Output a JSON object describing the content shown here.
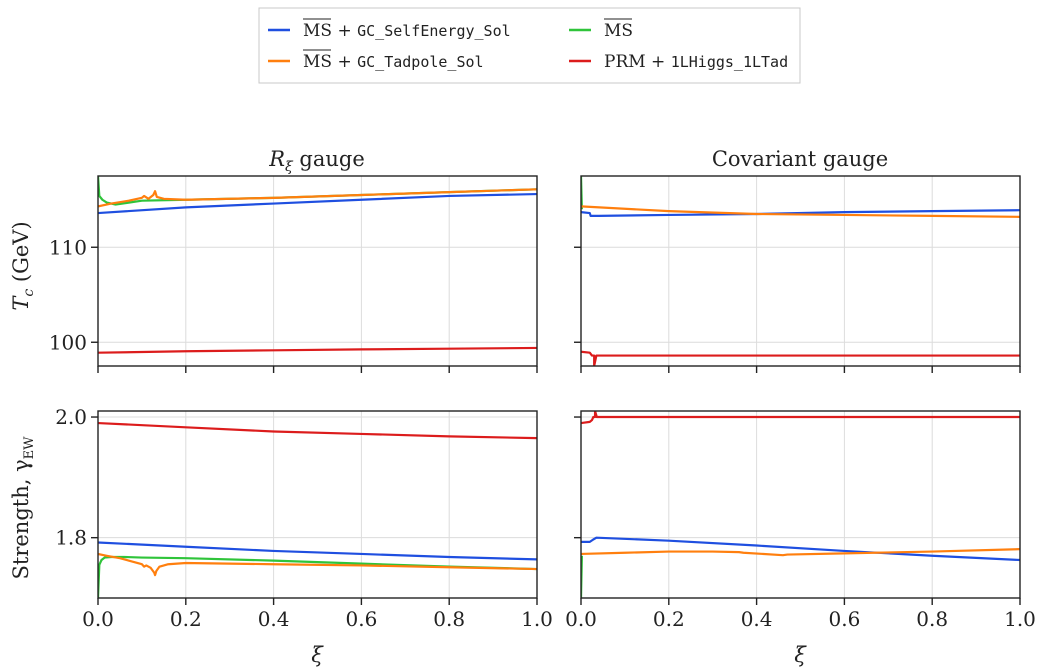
{
  "legend": {
    "placement": "top-center",
    "entries": [
      {
        "id": "ms_se",
        "prefix": "MS",
        "plus": " + ",
        "code": "GC_SelfEnergy_Sol",
        "color": "#1f4fe0"
      },
      {
        "id": "ms",
        "prefix": "MS",
        "plus": "",
        "code": "",
        "color": "#2fc43a"
      },
      {
        "id": "ms_tad",
        "prefix": "MS",
        "plus": " + ",
        "code": "GC_Tadpole_Sol",
        "color": "#ff7f0e"
      },
      {
        "id": "prm",
        "prefix": "PRM",
        "plus": " + ",
        "code": "1LHiggs_1LTad",
        "color": "#dc1c1c"
      }
    ]
  },
  "labels": {
    "col_left": "R",
    "col_left_sub": "ξ",
    "col_left_rest": " gauge",
    "col_right": "Covariant gauge",
    "ylabel_top": "T",
    "ylabel_top_sub": "c",
    "ylabel_top_rest": " (GeV)",
    "ylabel_bottom": "Strength, γ",
    "ylabel_bottom_sub": "EW",
    "xlabel": "ξ"
  },
  "chart_data": [
    {
      "id": "tc_rxi",
      "type": "line",
      "row": 0,
      "col": 0,
      "xlim": [
        0,
        1
      ],
      "ylim": [
        97.5,
        117.5
      ],
      "xticks": [
        0.0,
        0.2,
        0.4,
        0.6,
        0.8,
        1.0
      ],
      "xtick_labels": [],
      "yticks": [
        100,
        110
      ],
      "ytick_labels": [
        "100",
        "110"
      ],
      "grid": true,
      "series": [
        {
          "ref": "ms_se",
          "x": [
            0,
            0.2,
            0.4,
            0.6,
            0.8,
            1.0
          ],
          "y": [
            113.6,
            114.2,
            114.6,
            115.0,
            115.4,
            115.6
          ]
        },
        {
          "ref": "ms",
          "x": [
            0,
            0.003,
            0.01,
            0.02,
            0.04,
            0.07,
            0.1,
            0.2,
            0.4,
            0.6,
            0.8,
            1.0
          ],
          "y": [
            117.5,
            115.4,
            115.0,
            114.7,
            114.5,
            114.7,
            114.9,
            115.0,
            115.2,
            115.5,
            115.8,
            116.1
          ]
        },
        {
          "ref": "ms_tad",
          "x": [
            0,
            0.03,
            0.07,
            0.1,
            0.105,
            0.115,
            0.126,
            0.13,
            0.134,
            0.15,
            0.2,
            0.4,
            0.6,
            0.8,
            1.0
          ],
          "y": [
            114.3,
            114.6,
            114.9,
            115.2,
            115.4,
            115.1,
            115.5,
            115.9,
            115.3,
            115.1,
            115.0,
            115.2,
            115.5,
            115.8,
            116.1
          ]
        },
        {
          "ref": "prm",
          "x": [
            0,
            0.2,
            0.4,
            0.6,
            0.8,
            1.0
          ],
          "y": [
            98.9,
            99.05,
            99.15,
            99.25,
            99.32,
            99.4
          ]
        }
      ]
    },
    {
      "id": "tc_cov",
      "type": "line",
      "row": 0,
      "col": 1,
      "xlim": [
        0,
        1
      ],
      "ylim": [
        97.5,
        117.5
      ],
      "xticks": [
        0.0,
        0.2,
        0.4,
        0.6,
        0.8,
        1.0
      ],
      "xtick_labels": [],
      "yticks": [
        100,
        110
      ],
      "ytick_labels": [],
      "grid": true,
      "series": [
        {
          "ref": "ms",
          "x": [
            0,
            0.002
          ],
          "y": [
            117.5,
            114.0
          ]
        },
        {
          "ref": "ms_se",
          "x": [
            0,
            0.02,
            0.022,
            0.03,
            0.04,
            0.2,
            0.4,
            0.6,
            0.8,
            1.0
          ],
          "y": [
            113.7,
            113.6,
            113.3,
            113.3,
            113.3,
            113.4,
            113.5,
            113.7,
            113.8,
            113.9
          ]
        },
        {
          "ref": "ms_tad",
          "x": [
            0,
            0.2,
            0.4,
            0.6,
            0.8,
            1.0
          ],
          "y": [
            114.3,
            113.8,
            113.5,
            113.4,
            113.3,
            113.2
          ]
        },
        {
          "ref": "prm",
          "x": [
            0,
            0.02,
            0.025,
            0.03,
            0.03,
            0.035,
            0.2,
            0.4,
            0.6,
            0.8,
            1.0
          ],
          "y": [
            99.0,
            98.9,
            98.6,
            98.6,
            97.5,
            98.6,
            98.6,
            98.6,
            98.6,
            98.6,
            98.6
          ]
        }
      ]
    },
    {
      "id": "str_rxi",
      "type": "line",
      "row": 1,
      "col": 0,
      "xlim": [
        0,
        1
      ],
      "ylim": [
        1.7,
        2.01
      ],
      "xticks": [
        0.0,
        0.2,
        0.4,
        0.6,
        0.8,
        1.0
      ],
      "xtick_labels": [
        "0.0",
        "0.2",
        "0.4",
        "0.6",
        "0.8",
        "1.0"
      ],
      "yticks": [
        1.8,
        2.0
      ],
      "ytick_labels": [
        "1.8",
        "2.0"
      ],
      "grid": true,
      "series": [
        {
          "ref": "prm",
          "x": [
            0,
            0.2,
            0.4,
            0.6,
            0.8,
            1.0
          ],
          "y": [
            1.99,
            1.983,
            1.976,
            1.972,
            1.968,
            1.965
          ]
        },
        {
          "ref": "ms_se",
          "x": [
            0,
            0.2,
            0.4,
            0.6,
            0.8,
            1.0
          ],
          "y": [
            1.792,
            1.785,
            1.778,
            1.773,
            1.768,
            1.764
          ]
        },
        {
          "ref": "ms",
          "x": [
            0,
            0.003,
            0.008,
            0.015,
            0.03,
            0.06,
            0.1,
            0.2,
            0.4,
            0.6,
            0.8,
            1.0
          ],
          "y": [
            1.7,
            1.755,
            1.763,
            1.767,
            1.768,
            1.768,
            1.767,
            1.766,
            1.762,
            1.757,
            1.752,
            1.748
          ]
        },
        {
          "ref": "ms_tad",
          "x": [
            0,
            0.02,
            0.05,
            0.08,
            0.1,
            0.105,
            0.11,
            0.12,
            0.128,
            0.13,
            0.133,
            0.14,
            0.16,
            0.2,
            0.4,
            0.6,
            0.8,
            1.0
          ],
          "y": [
            1.773,
            1.77,
            1.766,
            1.76,
            1.756,
            1.752,
            1.754,
            1.75,
            1.742,
            1.738,
            1.745,
            1.752,
            1.756,
            1.758,
            1.756,
            1.754,
            1.751,
            1.748
          ]
        }
      ]
    },
    {
      "id": "str_cov",
      "type": "line",
      "row": 1,
      "col": 1,
      "xlim": [
        0,
        1
      ],
      "ylim": [
        1.7,
        2.01
      ],
      "xticks": [
        0.0,
        0.2,
        0.4,
        0.6,
        0.8,
        1.0
      ],
      "xtick_labels": [
        "0.0",
        "0.2",
        "0.4",
        "0.6",
        "0.8",
        "1.0"
      ],
      "yticks": [
        1.8,
        2.0
      ],
      "ytick_labels": [],
      "grid": true,
      "series": [
        {
          "ref": "prm",
          "x": [
            0,
            0.02,
            0.025,
            0.028,
            0.032,
            0.032,
            0.036,
            0.2,
            0.4,
            0.6,
            0.8,
            1.0
          ],
          "y": [
            1.99,
            1.992,
            1.995,
            2.0,
            2.0,
            2.01,
            2.0,
            2.0,
            2.0,
            2.0,
            2.0,
            2.0
          ]
        },
        {
          "ref": "ms_se",
          "x": [
            0,
            0.02,
            0.028,
            0.035,
            0.2,
            0.4,
            0.6,
            0.8,
            1.0
          ],
          "y": [
            1.793,
            1.793,
            1.797,
            1.8,
            1.795,
            1.787,
            1.778,
            1.77,
            1.763
          ]
        },
        {
          "ref": "ms",
          "x": [
            0,
            0.002
          ],
          "y": [
            1.7,
            1.77
          ]
        },
        {
          "ref": "ms_tad",
          "x": [
            0,
            0.1,
            0.2,
            0.3,
            0.36,
            0.37,
            0.46,
            0.47,
            0.6,
            0.8,
            1.0
          ],
          "y": [
            1.773,
            1.775,
            1.777,
            1.777,
            1.776,
            1.775,
            1.771,
            1.772,
            1.774,
            1.777,
            1.781
          ]
        }
      ]
    }
  ]
}
